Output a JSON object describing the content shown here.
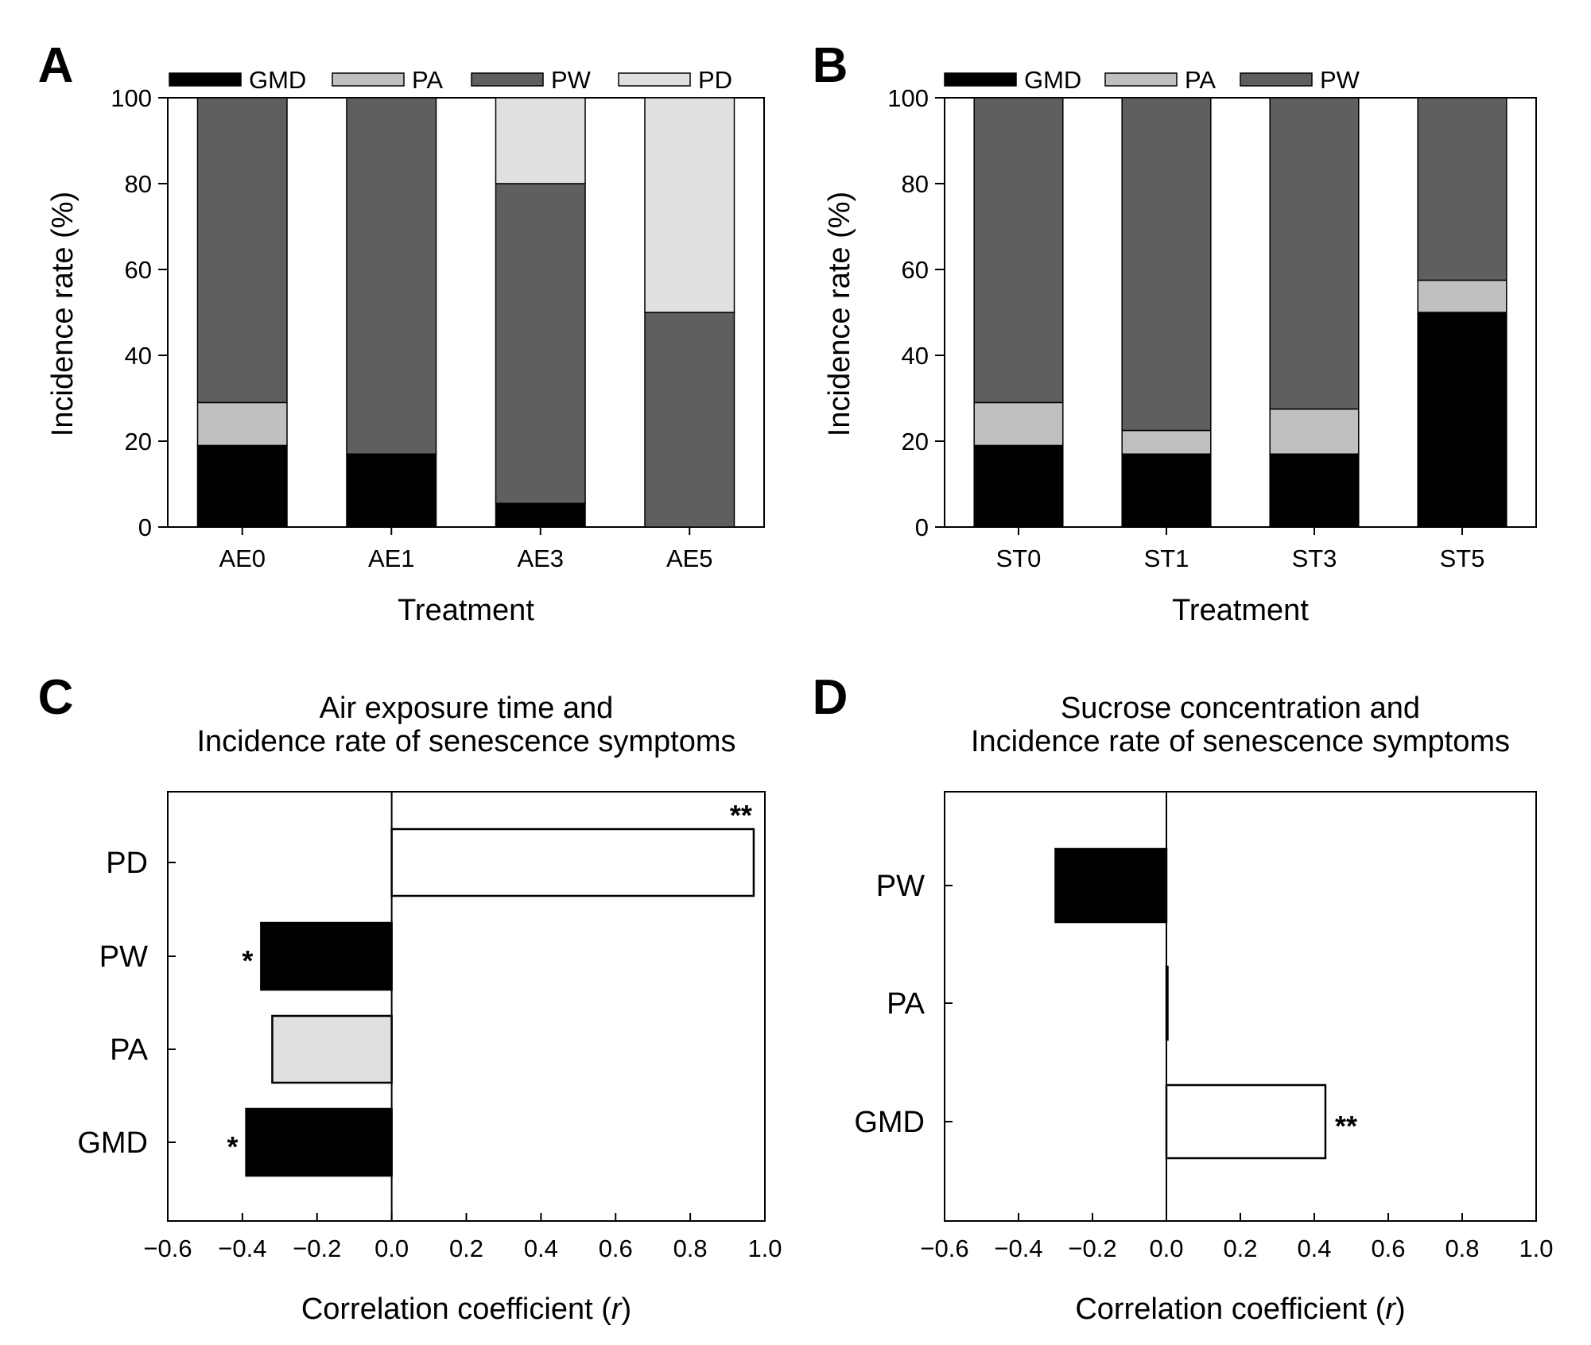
{
  "chart_data": [
    {
      "panel": "A",
      "type": "bar",
      "stacked": true,
      "categories": [
        "AE0",
        "AE1",
        "AE3",
        "AE5"
      ],
      "series": [
        {
          "name": "GMD",
          "color": "#000000",
          "values": [
            19,
            17,
            5.5,
            0
          ]
        },
        {
          "name": "PA",
          "color": "#c0c0c0",
          "values": [
            10,
            0,
            0,
            0
          ]
        },
        {
          "name": "PW",
          "color": "#5f5f5f",
          "values": [
            71,
            83,
            74.5,
            50
          ]
        },
        {
          "name": "PD",
          "color": "#e0e0e0",
          "values": [
            0,
            0,
            20,
            50
          ]
        }
      ],
      "xlabel": "Treatment",
      "ylabel": "Incidence rate (%)",
      "ylim": [
        0,
        100
      ],
      "yticks": [
        "0",
        "20",
        "40",
        "60",
        "80",
        "100"
      ]
    },
    {
      "panel": "B",
      "type": "bar",
      "stacked": true,
      "categories": [
        "ST0",
        "ST1",
        "ST3",
        "ST5"
      ],
      "series": [
        {
          "name": "GMD",
          "color": "#000000",
          "values": [
            19,
            17,
            17,
            50
          ]
        },
        {
          "name": "PA",
          "color": "#c0c0c0",
          "values": [
            10,
            5.5,
            10.5,
            7.5
          ]
        },
        {
          "name": "PW",
          "color": "#5f5f5f",
          "values": [
            71,
            77.5,
            72.5,
            42.5
          ]
        }
      ],
      "xlabel": "Treatment",
      "ylabel": "Incidence rate (%)",
      "ylim": [
        0,
        100
      ],
      "yticks": [
        "0",
        "20",
        "40",
        "60",
        "80",
        "100"
      ]
    },
    {
      "panel": "C",
      "type": "bar",
      "orientation": "horizontal",
      "title_lines": [
        "Air exposure time and",
        "Incidence rate of senescence symptoms"
      ],
      "categories": [
        "PD",
        "PW",
        "PA",
        "GMD"
      ],
      "values": [
        0.97,
        -0.35,
        -0.32,
        -0.39
      ],
      "colors": [
        "#ffffff",
        "#000000",
        "#e0e0e0",
        "#000000"
      ],
      "significance": [
        "**",
        "*",
        "",
        "*"
      ],
      "xlabel_main": "Correlation coefficient (",
      "xlabel_var": "r",
      "xlabel_end": ")",
      "xlim": [
        -0.6,
        1.0
      ],
      "xticks": [
        "−0.6",
        "−0.4",
        "−0.2",
        "0.0",
        "0.2",
        "0.4",
        "0.6",
        "0.8",
        "1.0"
      ]
    },
    {
      "panel": "D",
      "type": "bar",
      "orientation": "horizontal",
      "title_lines": [
        "Sucrose concentration and",
        "Incidence rate of senescence symptoms"
      ],
      "categories": [
        "PW",
        "PA",
        "GMD"
      ],
      "values": [
        -0.3,
        0.003,
        0.43
      ],
      "colors": [
        "#000000",
        "#000000",
        "#ffffff"
      ],
      "significance": [
        "",
        "",
        "**"
      ],
      "xlabel_main": "Correlation coefficient (",
      "xlabel_var": "r",
      "xlabel_end": ")",
      "xlim": [
        -0.6,
        1.0
      ],
      "xticks": [
        "−0.6",
        "−0.4",
        "−0.2",
        "0.0",
        "0.2",
        "0.4",
        "0.6",
        "0.8",
        "1.0"
      ]
    }
  ]
}
